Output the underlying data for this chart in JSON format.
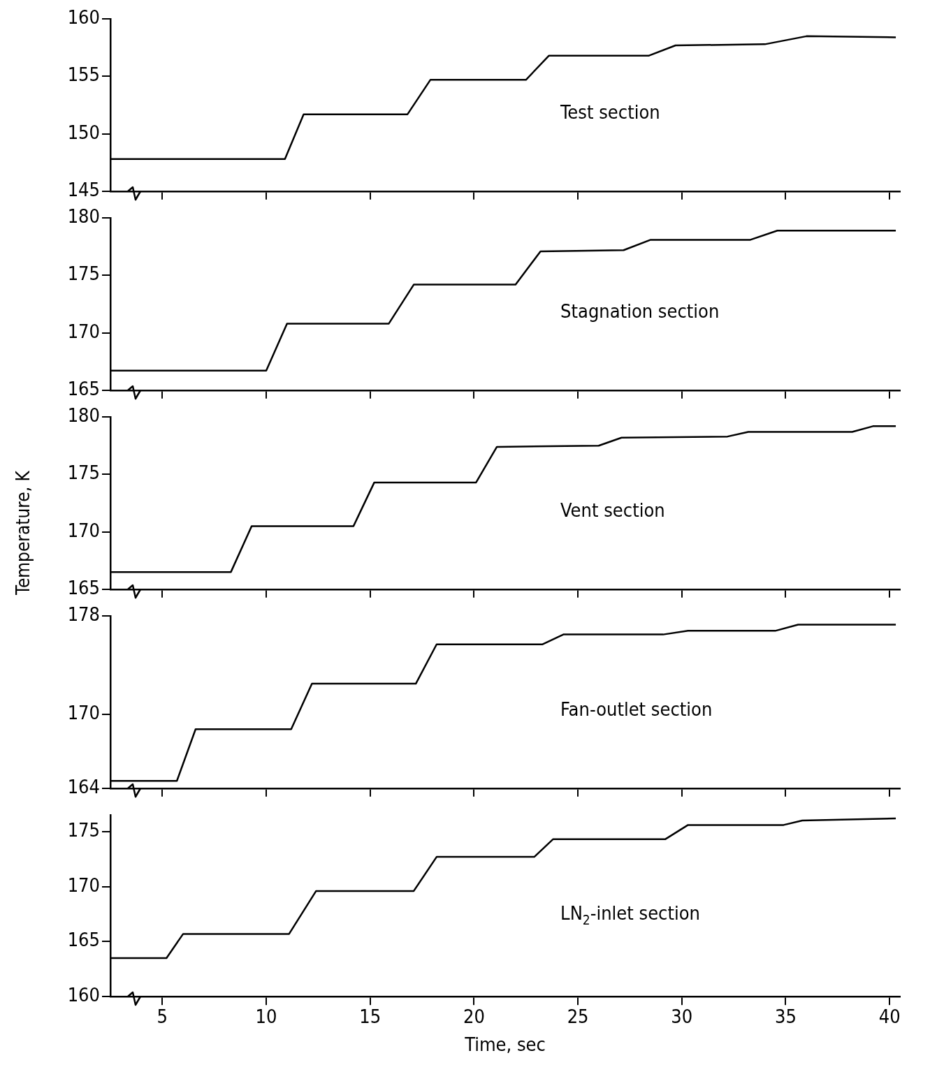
{
  "chart_data": [
    {
      "type": "line",
      "x": [
        2.5,
        10.9,
        11.8,
        16.8,
        17.9,
        22.5,
        23.6,
        28.4,
        29.7,
        34,
        36,
        40.3
      ],
      "series": [
        {
          "name": "Test section",
          "color": "#000000",
          "values": [
            147.8,
            147.8,
            151.7,
            151.7,
            154.7,
            154.7,
            156.8,
            156.8,
            157.7,
            157.8,
            158.5,
            158.4
          ]
        }
      ],
      "xlim": [
        2.5,
        40.5
      ],
      "xticks": [
        5,
        10,
        15,
        20,
        25,
        30,
        35,
        40
      ],
      "ylim": [
        145,
        160
      ],
      "yticks": [
        145,
        150,
        155,
        160
      ],
      "tick_labels": "y",
      "grid": false,
      "legend": false,
      "marker": "none"
    },
    {
      "type": "line",
      "x": [
        2.5,
        10,
        11,
        15.9,
        17.1,
        22,
        23.2,
        27.2,
        28.5,
        33.3,
        34.6,
        40.3
      ],
      "series": [
        {
          "name": "Stagnation section",
          "color": "#000000",
          "values": [
            166.7,
            166.7,
            170.8,
            170.8,
            174.2,
            174.2,
            177.1,
            177.2,
            178.1,
            178.1,
            178.9,
            178.9
          ]
        }
      ],
      "xlim": [
        2.5,
        40.5
      ],
      "xticks": [
        5,
        10,
        15,
        20,
        25,
        30,
        35,
        40
      ],
      "ylim": [
        165,
        180
      ],
      "yticks": [
        165,
        170,
        175,
        180
      ],
      "tick_labels": "y",
      "grid": false,
      "legend": false,
      "marker": "none"
    },
    {
      "type": "line",
      "x": [
        2.5,
        8.3,
        9.3,
        14.2,
        15.2,
        20.1,
        21.1,
        26,
        27.1,
        32.2,
        33.2,
        38.2,
        39.2,
        40.3
      ],
      "series": [
        {
          "name": "Vent section",
          "color": "#000000",
          "values": [
            166.5,
            166.5,
            170.5,
            170.5,
            174.3,
            174.3,
            177.4,
            177.5,
            178.2,
            178.3,
            178.7,
            178.7,
            179.2,
            179.2
          ]
        }
      ],
      "xlim": [
        2.5,
        40.5
      ],
      "xticks": [
        5,
        10,
        15,
        20,
        25,
        30,
        35,
        40
      ],
      "ylim": [
        165,
        180
      ],
      "yticks": [
        165,
        170,
        175,
        180
      ],
      "tick_labels": "y",
      "grid": false,
      "legend": false,
      "marker": "none",
      "ylabel": "Temperature, K"
    },
    {
      "type": "line",
      "x": [
        2.5,
        5.7,
        6.6,
        11.2,
        12.2,
        17.2,
        18.2,
        23.3,
        24.3,
        29.1,
        30.3,
        34.5,
        35.6,
        40.3
      ],
      "series": [
        {
          "name": "Fan-outlet section",
          "color": "#000000",
          "values": [
            164.6,
            164.6,
            168.8,
            168.8,
            172.5,
            172.5,
            175.7,
            175.7,
            176.5,
            176.5,
            176.8,
            176.8,
            177.3,
            177.3
          ]
        }
      ],
      "xlim": [
        2.5,
        40.5
      ],
      "xticks": [
        5,
        10,
        15,
        20,
        25,
        30,
        35,
        40
      ],
      "ylim": [
        164,
        178
      ],
      "yticks": [
        164,
        170,
        178
      ],
      "tick_labels": "y",
      "grid": false,
      "legend": false,
      "marker": "none"
    },
    {
      "type": "line",
      "x": [
        2.5,
        5.2,
        6,
        11.1,
        12.4,
        17.1,
        18.2,
        22.9,
        23.8,
        29.2,
        30.3,
        34.9,
        35.8,
        40.3
      ],
      "series": [
        {
          "name": "LN$_{2}$-inlet section",
          "color": "#000000",
          "values": [
            163.5,
            163.5,
            165.7,
            165.7,
            169.6,
            169.6,
            172.7,
            172.7,
            174.3,
            174.3,
            175.6,
            175.6,
            176,
            176.2
          ]
        }
      ],
      "xlim": [
        2.5,
        40.5
      ],
      "xticks": [
        5,
        10,
        15,
        20,
        25,
        30,
        35,
        40
      ],
      "ylim": [
        160,
        176.5
      ],
      "yticks": [
        160,
        165,
        170,
        175
      ],
      "grid": false,
      "legend": false,
      "marker": "none",
      "xlabel": "Time, sec"
    }
  ]
}
